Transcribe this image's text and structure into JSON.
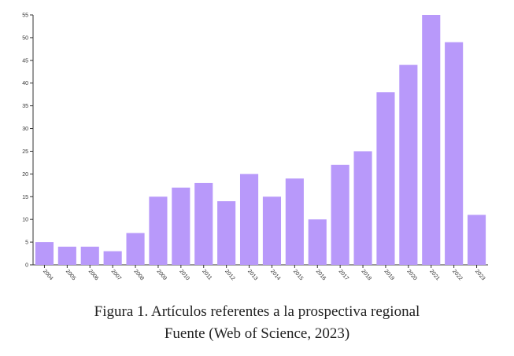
{
  "chart_data": {
    "type": "bar",
    "title": "",
    "xlabel": "",
    "ylabel": "",
    "categories": [
      "2004",
      "2005",
      "2006",
      "2007",
      "2008",
      "2009",
      "2010",
      "2011",
      "2012",
      "2013",
      "2014",
      "2015",
      "2016",
      "2017",
      "2018",
      "2019",
      "2020",
      "2021",
      "2022",
      "2023"
    ],
    "values": [
      5,
      4,
      4,
      3,
      7,
      15,
      17,
      18,
      14,
      20,
      15,
      19,
      10,
      22,
      25,
      38,
      44,
      55,
      49,
      11
    ],
    "ylim": [
      0,
      55
    ],
    "yticks": [
      0,
      5,
      10,
      15,
      20,
      25,
      30,
      35,
      40,
      45,
      50,
      55
    ],
    "bar_color": "#b899fa",
    "grid": false,
    "legend": "none"
  },
  "caption": {
    "line1": "Figura 1. Artículos referentes a la prospectiva regional",
    "line2": "Fuente (Web of Science, 2023)"
  }
}
